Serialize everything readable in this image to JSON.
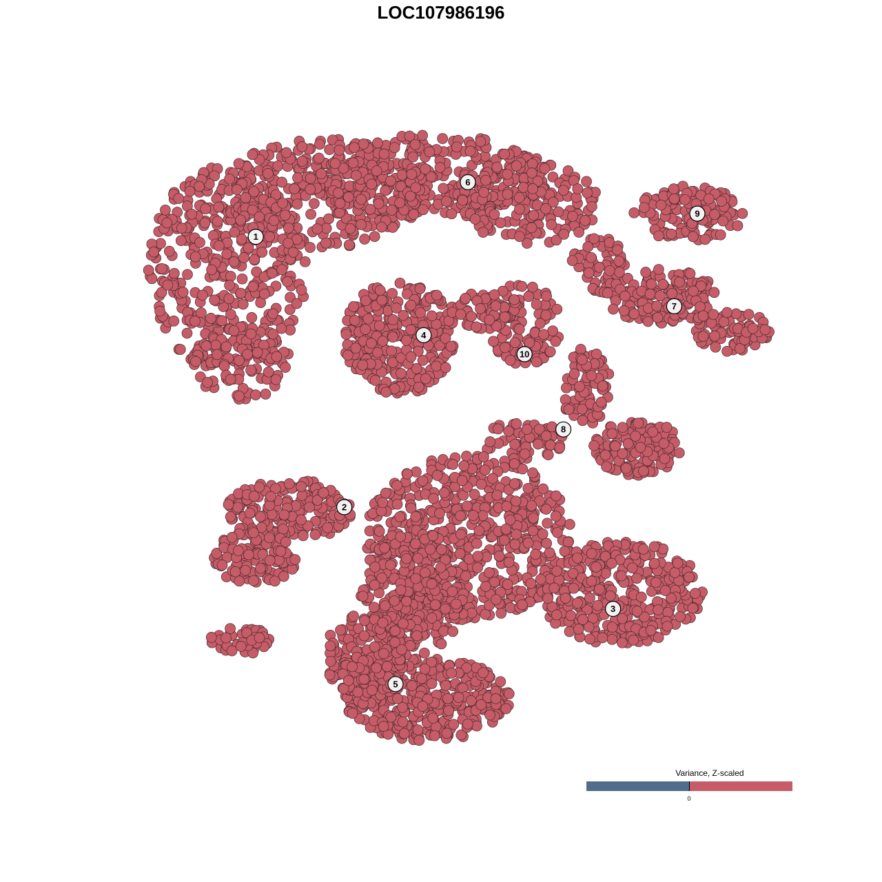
{
  "chart_data": {
    "type": "scatter",
    "title": "LOC107986196",
    "xlabel": "",
    "ylabel": "",
    "grid": false,
    "axes_visible": false,
    "point_color": "#c55c67",
    "point_stroke": "#4a2a2e",
    "cluster_labels": [
      {
        "label": "1",
        "x": -22.4,
        "y": 24.7
      },
      {
        "label": "2",
        "x": -11.7,
        "y": -8.0
      },
      {
        "label": "3",
        "x": 20.8,
        "y": -20.3
      },
      {
        "label": "4",
        "x": -2.1,
        "y": 12.8
      },
      {
        "label": "5",
        "x": -5.5,
        "y": -29.4
      },
      {
        "label": "6",
        "x": 3.25,
        "y": 31.3
      },
      {
        "label": "7",
        "x": 28.2,
        "y": 16.3
      },
      {
        "label": "8",
        "x": 14.8,
        "y": 1.4
      },
      {
        "label": "9",
        "x": 31.0,
        "y": 27.5
      },
      {
        "label": "10",
        "x": 10.1,
        "y": 10.5
      }
    ],
    "legend": {
      "title": "Variance, Z-scaled",
      "placement": "bottom-right",
      "tick_label": "0",
      "low_color": "#506d8e",
      "high_color": "#c55c67"
    }
  }
}
